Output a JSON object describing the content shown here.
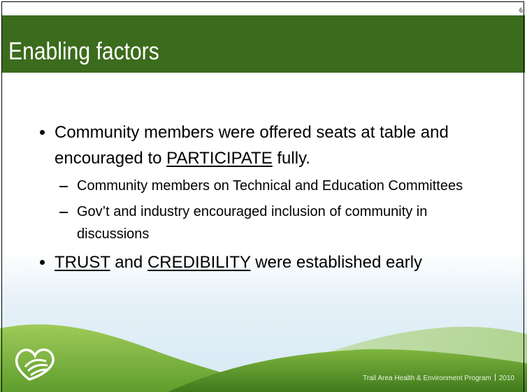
{
  "slide": {
    "page_number": "6",
    "title": "Enabling factors",
    "bullets": [
      {
        "level": 1,
        "runs": [
          {
            "text": "Community members were offered seats at table and encouraged to ",
            "underline": false
          },
          {
            "text": "PARTICIPATE",
            "underline": true
          },
          {
            "text": " fully.",
            "underline": false
          }
        ]
      },
      {
        "level": 2,
        "runs": [
          {
            "text": "Community members on Technical and Education Committees",
            "underline": false
          }
        ]
      },
      {
        "level": 2,
        "runs": [
          {
            "text": "Gov’t and industry encouraged inclusion of community in discussions",
            "underline": false
          }
        ]
      },
      {
        "level": 1,
        "runs": [
          {
            "text": "TRUST",
            "underline": true
          },
          {
            "text": " and ",
            "underline": false
          },
          {
            "text": "CREDIBILITY",
            "underline": true
          },
          {
            "text": " were established early",
            "underline": false
          }
        ]
      }
    ],
    "footer": {
      "organization": "Trail Area Health & Environment Program",
      "year": "2010"
    }
  }
}
